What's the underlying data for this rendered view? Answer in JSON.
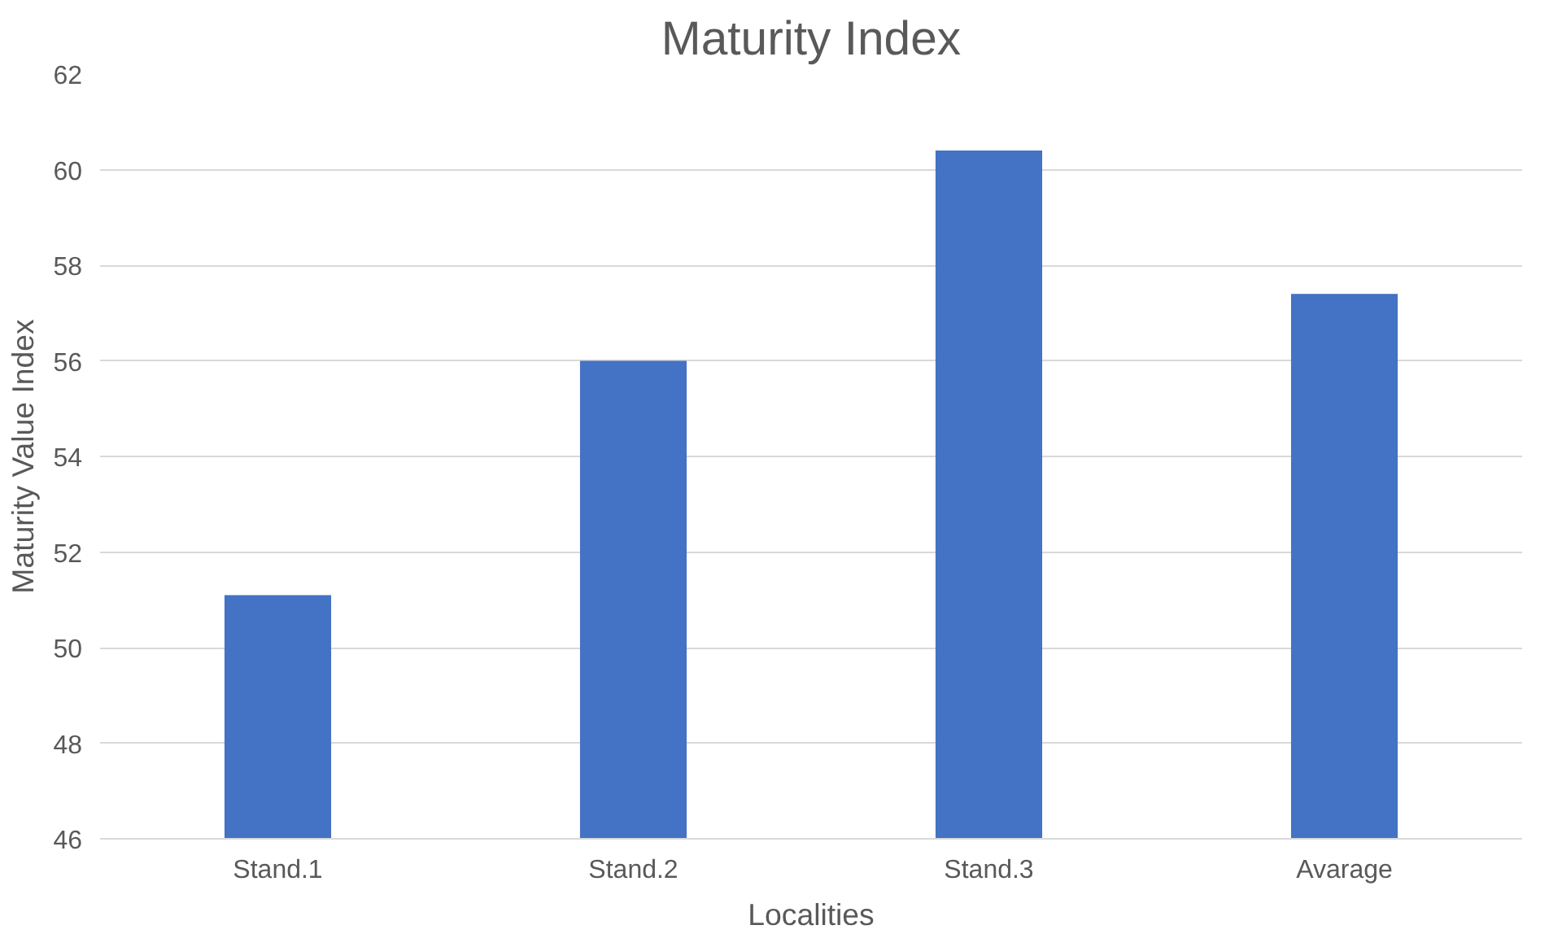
{
  "chart_data": {
    "type": "bar",
    "title": "Maturity Index",
    "xlabel": "Localities",
    "ylabel": "Maturity Value Index",
    "categories": [
      "Stand.1",
      "Stand.2",
      "Stand.3",
      "Avarage"
    ],
    "values": [
      51.1,
      56.0,
      60.4,
      57.4
    ],
    "color": "#4472c4",
    "ylim": [
      46,
      62
    ],
    "yticks": [
      46,
      48,
      50,
      52,
      54,
      56,
      58,
      60,
      62
    ],
    "grid": "y"
  }
}
